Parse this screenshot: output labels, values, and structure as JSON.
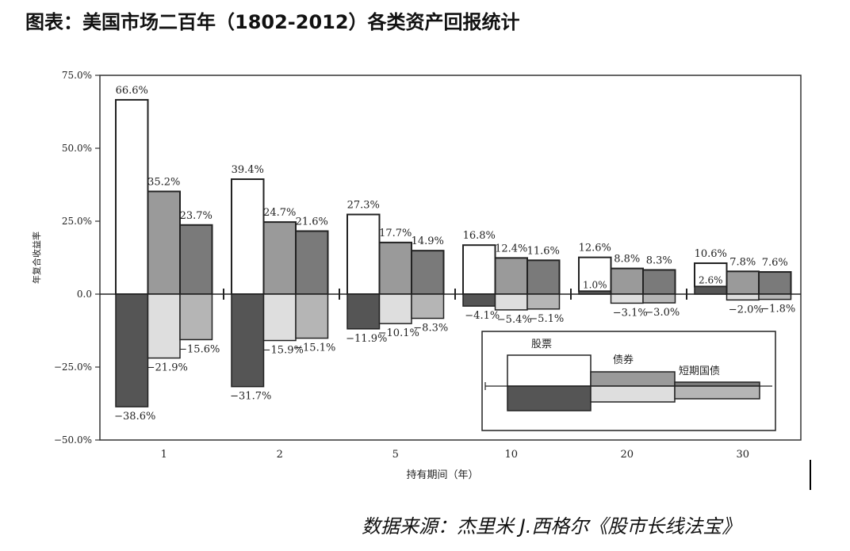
{
  "title": "图表：美国市场二百年（1802-2012）各类资产回报统计",
  "source": "数据来源：杰里米 J.西格尔《股市长线法宝》",
  "chart_data": {
    "type": "bar",
    "xlabel": "持有期间（年）",
    "ylabel": "年复合收益率",
    "ylim": [
      -50,
      75
    ],
    "yticks": [
      75,
      50,
      25,
      0,
      -25,
      -50
    ],
    "ytick_labels": [
      "75.0%",
      "50.0%",
      "25.0%",
      "0.0",
      "−25.0%",
      "−50.0%"
    ],
    "categories": [
      "1",
      "2",
      "5",
      "10",
      "20",
      "30"
    ],
    "legend_position": "bottom-right",
    "legend_title": "",
    "series": [
      {
        "name": "股票",
        "max": [
          66.6,
          39.4,
          27.3,
          16.8,
          12.6,
          10.6
        ],
        "min": [
          -38.6,
          -31.7,
          -11.9,
          -4.1,
          1.0,
          2.6
        ],
        "max_labels": [
          "66.6%",
          "39.4%",
          "27.3%",
          "16.8%",
          "12.6%",
          "10.6%"
        ],
        "min_labels": [
          "−38.6%",
          "−31.7%",
          "−11.9%",
          "−4.1%",
          "1.0%",
          "2.6%"
        ]
      },
      {
        "name": "债券",
        "max": [
          35.2,
          24.7,
          17.7,
          12.4,
          8.8,
          7.8
        ],
        "min": [
          -21.9,
          -15.9,
          -10.1,
          -5.4,
          -3.1,
          -2.0
        ],
        "max_labels": [
          "35.2%",
          "24.7%",
          "17.7%",
          "12.4%",
          "8.8%",
          "7.8%"
        ],
        "min_labels": [
          "−21.9%",
          "−15.9%",
          "−10.1%",
          "−5.4%",
          "−3.1%",
          "−2.0%"
        ]
      },
      {
        "name": "短期国债",
        "max": [
          23.7,
          21.6,
          14.9,
          11.6,
          8.3,
          7.6
        ],
        "min": [
          -15.6,
          -15.1,
          -8.3,
          -5.1,
          -3.0,
          -1.8
        ],
        "max_labels": [
          "23.7%",
          "21.6%",
          "14.9%",
          "11.6%",
          "8.3%",
          "7.6%"
        ],
        "min_labels": [
          "−15.6%",
          "−15.1%",
          "−8.3%",
          "−5.1%",
          "−3.0%",
          "−1.8%"
        ]
      }
    ],
    "colors": {
      "stock_max": "#ffffff",
      "stock_min": "#555555",
      "bond_max": "#9a9a9a",
      "bond_min": "#dedede",
      "bill_max": "#7a7a7a",
      "bill_min": "#b5b5b5",
      "stroke": "#222222"
    }
  }
}
